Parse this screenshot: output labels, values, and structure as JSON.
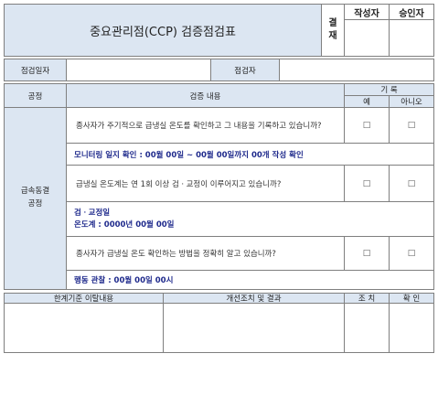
{
  "doc": {
    "title": "중요관리점(CCP)  검증점검표",
    "approval_label": "결\n재",
    "writer_label": "작성자",
    "approver_label": "승인자",
    "inspect_date_label": "점검일자",
    "inspector_label": "점검자",
    "process_label": "공정",
    "verify_content_label": "검증 내용",
    "record_label": "기  록",
    "yes_label": "예",
    "no_label": "아니오",
    "process_name": "급속동결\n공정",
    "checkbox_glyph": "□",
    "items": [
      {
        "question": "종사자가 주기적으로 급냉실 온도를 확인하고 그 내용을 기록하고 있습니까?"
      },
      {
        "question": "급냉실 온도계는 연 1회 이상 검ㆍ교정이 이루어지고 있습니까?"
      },
      {
        "question": "종사자가 급냉실 온도 확인하는 방법을 정확히 알고 있습니까?"
      }
    ],
    "confirm_1": "모니터링 일지 확인 : 00월 00일 ~ 00월 00일까지 00개 작성 확인",
    "confirm_2_line1": "검ㆍ교정일",
    "confirm_2_line2": "온도계 : 0000년 00월 00일",
    "confirm_3": "행동 관찰 : 00월 00일 00시",
    "deviation_label": "한계기준 이탈내용",
    "improvement_label": "개선조치 및 결과",
    "action_label": "조  치",
    "confirm_label": "확  인"
  }
}
